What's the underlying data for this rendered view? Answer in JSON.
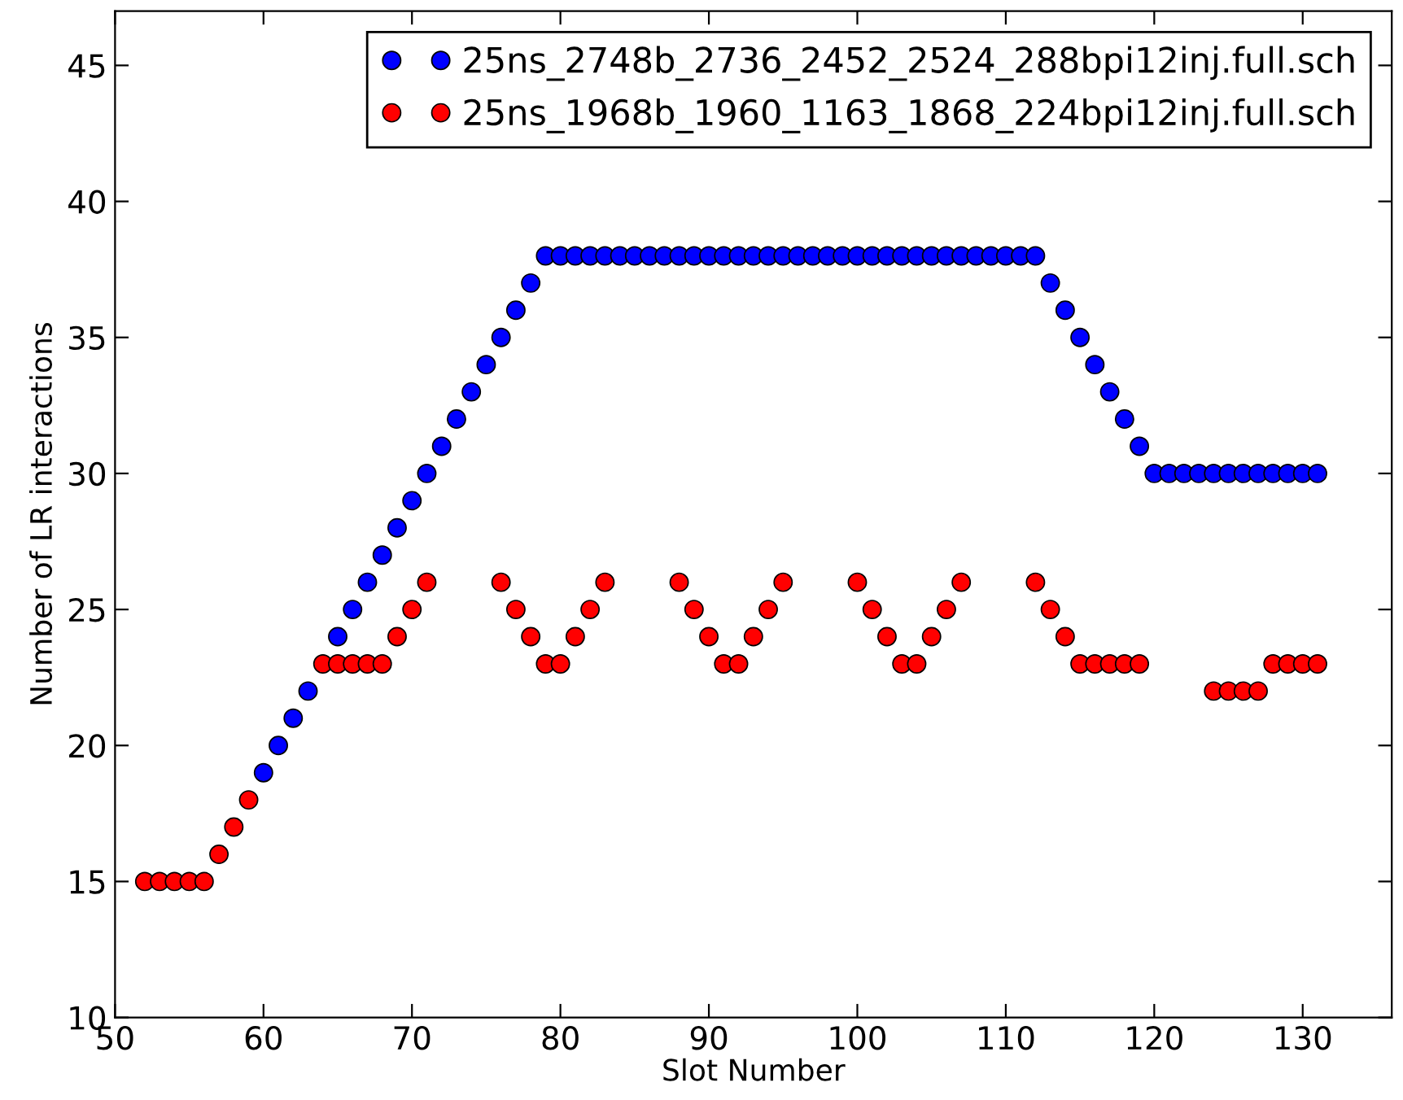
{
  "chart_data": {
    "type": "scatter",
    "xlabel": "Slot Number",
    "ylabel": "Number of LR interactions",
    "xlim": [
      50,
      136
    ],
    "xticks": [
      50,
      60,
      70,
      80,
      90,
      100,
      110,
      120,
      130
    ],
    "ylim": [
      10,
      47
    ],
    "yticks": [
      10,
      15,
      20,
      25,
      30,
      35,
      40,
      45
    ],
    "grid": false,
    "legend": "top right",
    "marker": "circle",
    "series": [
      {
        "name": "25ns_2748b_2736_2452_2524_288bpi12inj.full.sch",
        "color": "#0000ff",
        "x": [
          60,
          61,
          62,
          63,
          65,
          66,
          67,
          68,
          69,
          70,
          71,
          72,
          73,
          74,
          75,
          76,
          77,
          78,
          79,
          80,
          81,
          82,
          83,
          84,
          85,
          86,
          87,
          88,
          89,
          90,
          91,
          92,
          93,
          94,
          95,
          96,
          97,
          98,
          99,
          100,
          101,
          102,
          103,
          104,
          105,
          106,
          107,
          108,
          109,
          110,
          111,
          112,
          113,
          114,
          115,
          116,
          117,
          118,
          119,
          120,
          121,
          122,
          123,
          124,
          125,
          126,
          127,
          128,
          129,
          130,
          131
        ],
        "values": [
          19,
          20,
          21,
          22,
          24,
          25,
          26,
          27,
          28,
          29,
          30,
          31,
          32,
          33,
          34,
          35,
          36,
          37,
          38,
          38,
          38,
          38,
          38,
          38,
          38,
          38,
          38,
          38,
          38,
          38,
          38,
          38,
          38,
          38,
          38,
          38,
          38,
          38,
          38,
          38,
          38,
          38,
          38,
          38,
          38,
          38,
          38,
          38,
          38,
          38,
          38,
          38,
          37,
          36,
          35,
          34,
          33,
          32,
          31,
          30,
          30,
          30,
          30,
          30,
          30,
          30,
          30,
          30,
          30,
          30,
          30
        ]
      },
      {
        "name": "25ns_1968b_1960_1163_1868_224bpi12inj.full.sch",
        "color": "#ff0000",
        "x": [
          52,
          53,
          54,
          55,
          56,
          57,
          58,
          59,
          64,
          65,
          66,
          67,
          68,
          69,
          70,
          71,
          76,
          77,
          78,
          79,
          80,
          81,
          82,
          83,
          88,
          89,
          90,
          91,
          92,
          93,
          94,
          95,
          100,
          101,
          102,
          103,
          104,
          105,
          106,
          107,
          112,
          113,
          114,
          115,
          116,
          117,
          118,
          119,
          124,
          125,
          126,
          127,
          128,
          129,
          130,
          131
        ],
        "values": [
          15,
          15,
          15,
          15,
          15,
          16,
          17,
          18,
          23,
          23,
          23,
          23,
          23,
          24,
          25,
          26,
          26,
          25,
          24,
          23,
          23,
          24,
          25,
          26,
          26,
          25,
          24,
          23,
          23,
          24,
          25,
          26,
          26,
          25,
          24,
          23,
          23,
          24,
          25,
          26,
          26,
          25,
          24,
          23,
          23,
          23,
          23,
          23,
          22,
          22,
          22,
          22,
          23,
          23,
          23,
          23
        ]
      }
    ]
  }
}
